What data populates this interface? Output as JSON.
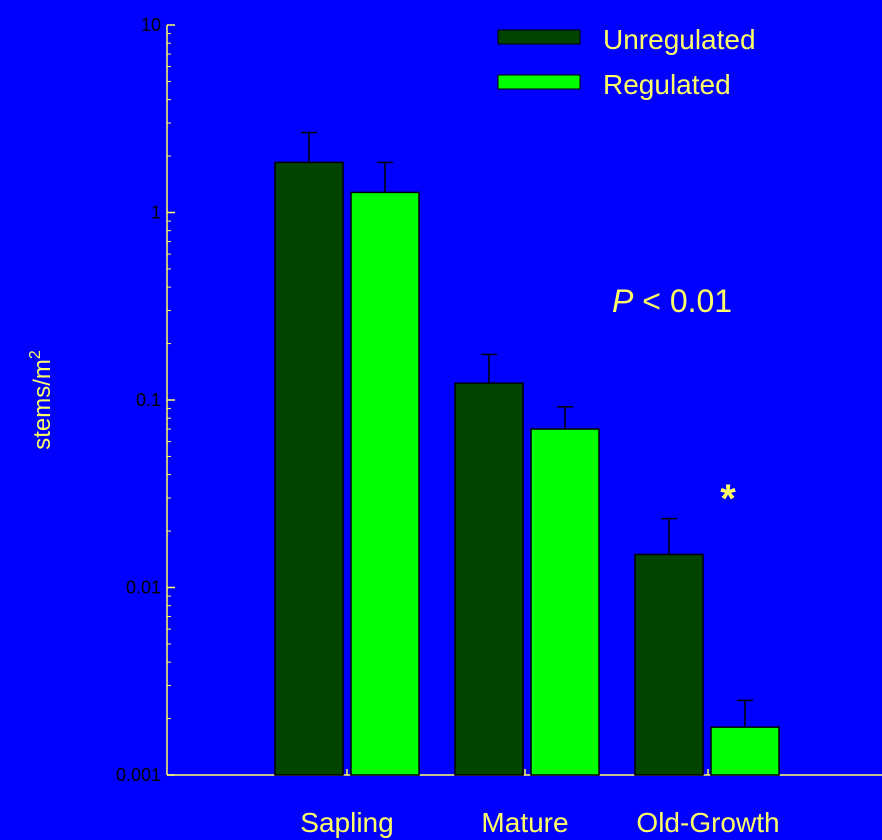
{
  "chart_data": {
    "type": "bar",
    "categories": [
      "Sapling",
      "Mature",
      "Old-Growth"
    ],
    "series": [
      {
        "name": "Unregulated",
        "values": [
          1.85,
          0.123,
          0.015
        ],
        "errors": [
          0.82,
          0.052,
          0.0083
        ],
        "color": "#004400"
      },
      {
        "name": "Regulated",
        "values": [
          1.28,
          0.07,
          0.0018
        ],
        "errors": [
          0.57,
          0.022,
          0.0007
        ],
        "color": "#00FF00"
      }
    ],
    "ylabel": "stems/m",
    "ylabel_sup": "2",
    "xlabel": "",
    "title": "",
    "y_scale": "log",
    "ylim": [
      0.001,
      10
    ],
    "y_ticks": [
      "0.001",
      "0.01",
      "0.1",
      "1",
      "10"
    ],
    "y_tick_values": [
      0.001,
      0.01,
      0.1,
      1,
      10
    ],
    "legend_position": "top-right",
    "annotations": {
      "p_symbol": "P",
      "p_rest": " < 0.01",
      "significance": "*"
    },
    "colors": {
      "background": "#0000FF",
      "axis": "#FFFF66",
      "text": "#FFFF66"
    }
  }
}
